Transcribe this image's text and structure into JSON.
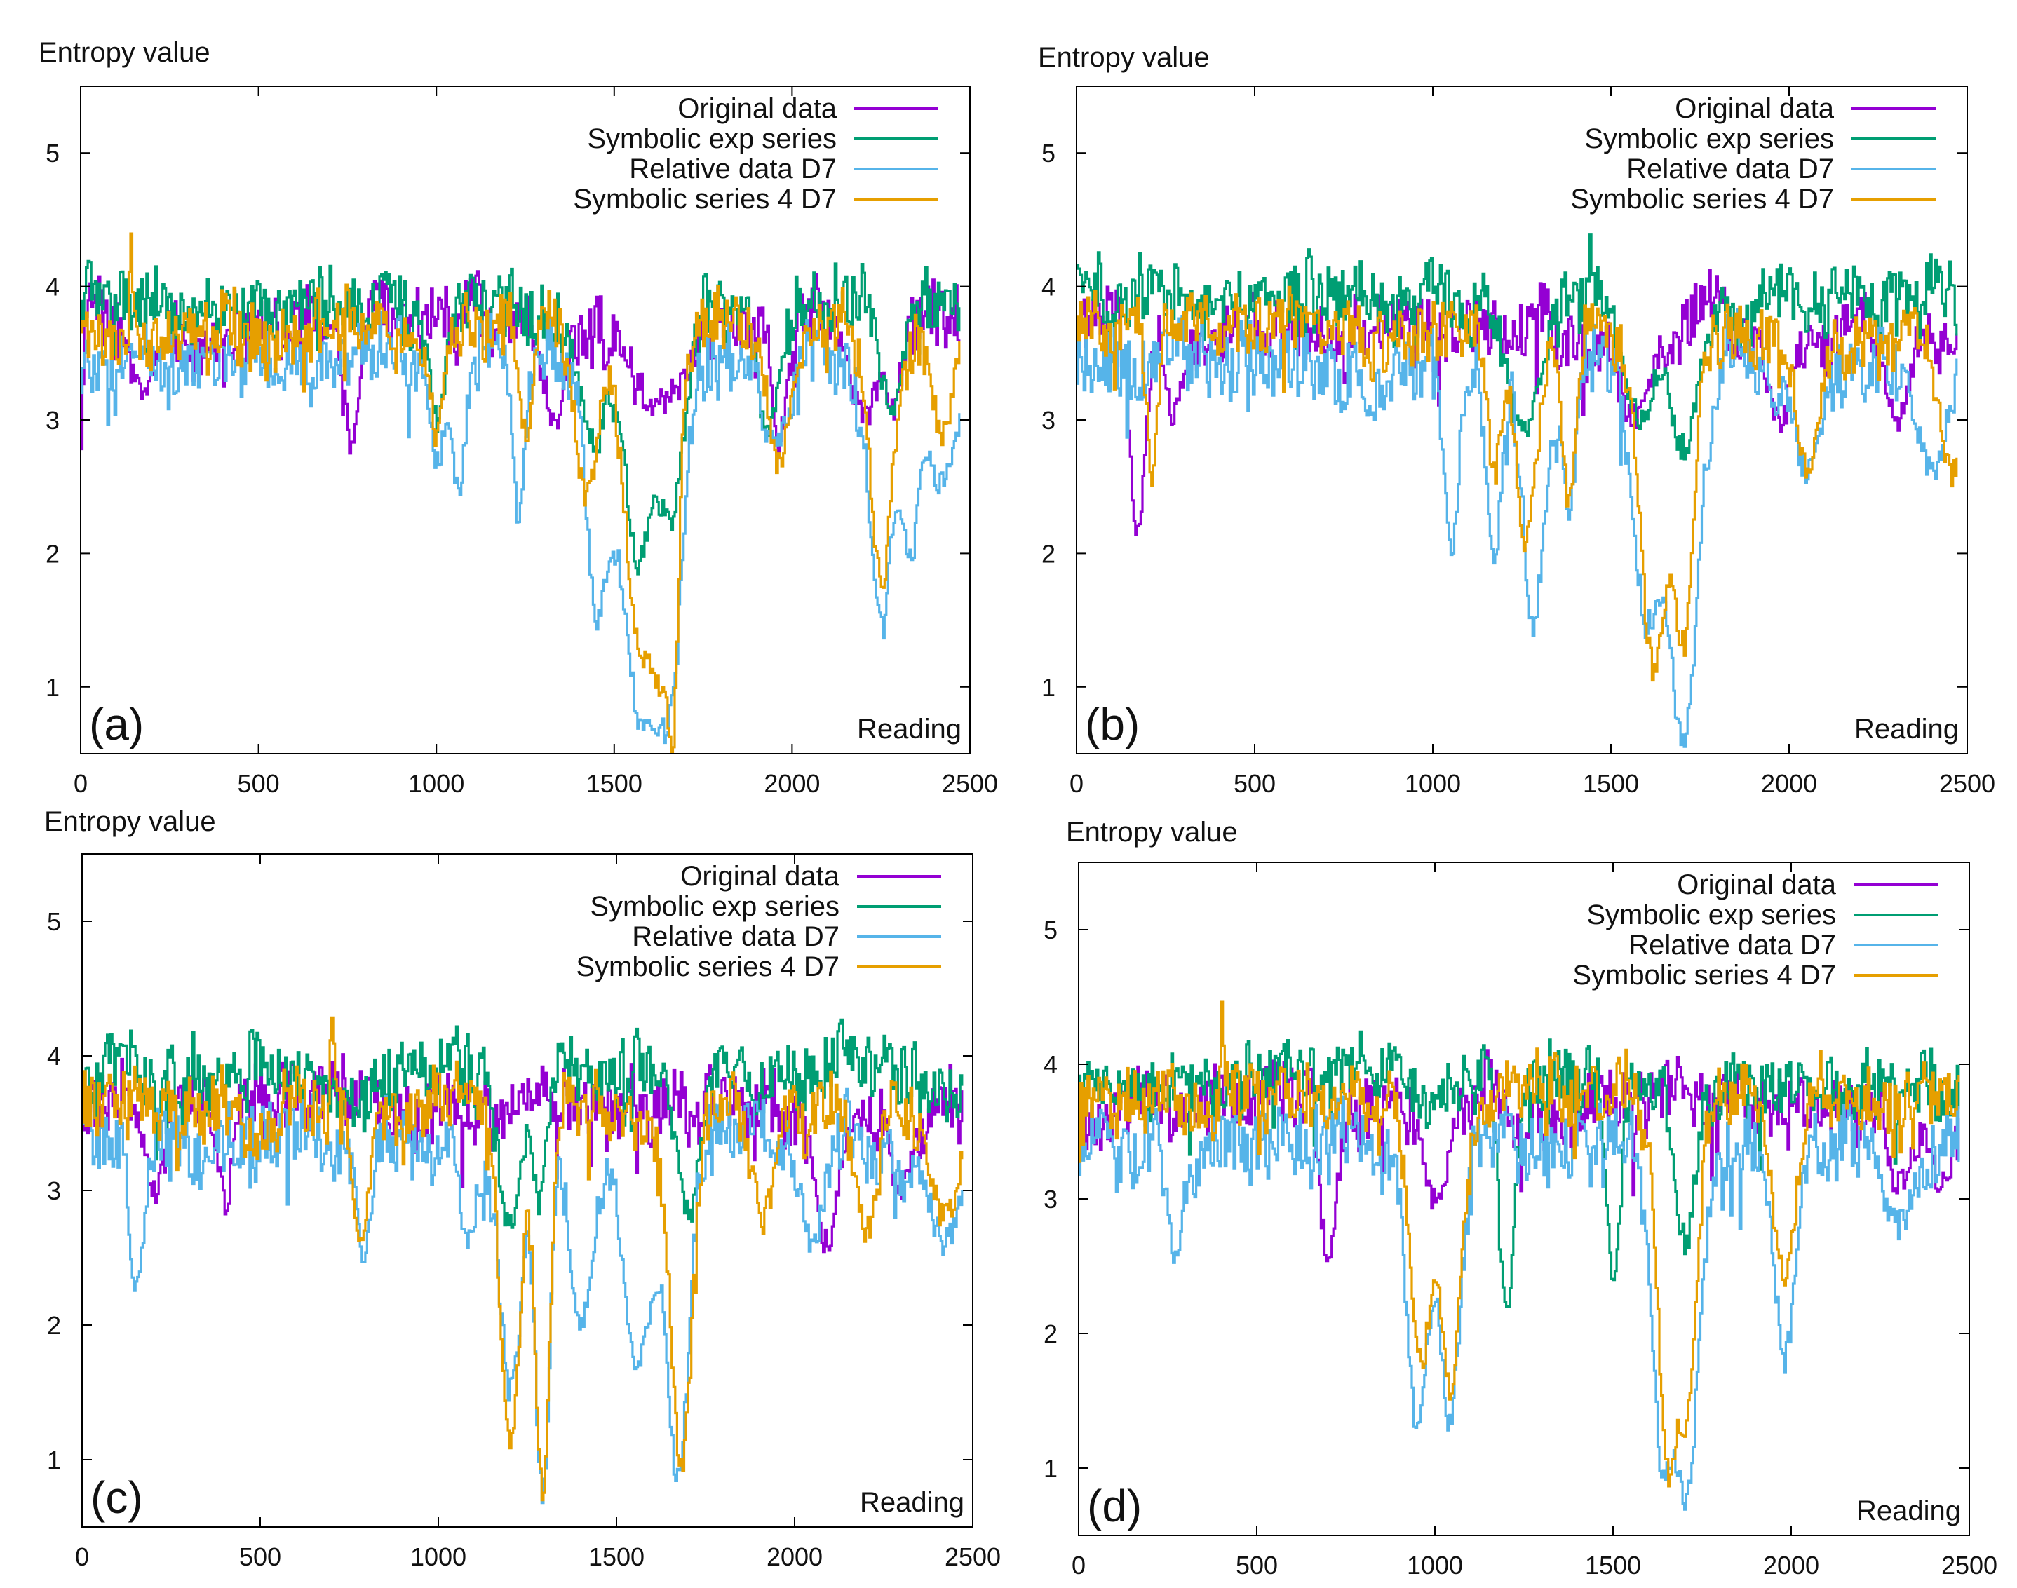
{
  "figure": {
    "background": "#ffffff"
  },
  "chart_data": [
    {
      "panel_label": "(a)",
      "type": "line",
      "ylabel": "Entropy value",
      "xlabel": "Reading",
      "xlim": [
        0,
        2500
      ],
      "ylim": [
        0.5,
        5.5
      ],
      "xticks": [
        0,
        500,
        1000,
        1500,
        2000,
        2500
      ],
      "yticks": [
        1,
        2,
        3,
        4,
        5
      ],
      "legend_position": "top-right",
      "grid": false,
      "series": [
        {
          "name": "Original data",
          "color": "#9400d3",
          "base": 3.7,
          "noise": 0.32,
          "seed": 11,
          "dips": [
            [
              0,
              2.9,
              5
            ],
            [
              170,
              3.2,
              30
            ],
            [
              760,
              2.8,
              20
            ],
            [
              1330,
              3.0,
              30
            ],
            [
              1620,
              3.1,
              60
            ],
            [
              1960,
              2.8,
              20
            ],
            [
              2200,
              3.0,
              30
            ],
            [
              2280,
              3.1,
              20
            ]
          ]
        },
        {
          "name": "Symbolic exp series",
          "color": "#009e73",
          "base": 3.88,
          "noise": 0.3,
          "seed": 12,
          "dips": [
            [
              1000,
              3.0,
              20
            ],
            [
              1440,
              2.8,
              40
            ],
            [
              1570,
              1.9,
              40
            ],
            [
              1650,
              2.2,
              40
            ],
            [
              1930,
              2.9,
              30
            ],
            [
              2280,
              3.1,
              30
            ]
          ]
        },
        {
          "name": "Relative data D7",
          "color": "#56b4e9",
          "base": 3.45,
          "noise": 0.35,
          "seed": 13,
          "dips": [
            [
              1000,
              2.7,
              20
            ],
            [
              1060,
              2.5,
              20
            ],
            [
              1230,
              2.2,
              15
            ],
            [
              1450,
              1.6,
              30
            ],
            [
              1580,
              0.72,
              60
            ],
            [
              1640,
              0.65,
              40
            ],
            [
              1950,
              2.8,
              30
            ],
            [
              2250,
              1.4,
              30
            ],
            [
              2330,
              1.9,
              30
            ],
            [
              2420,
              2.5,
              40
            ]
          ]
        },
        {
          "name": "Symbolic series 4 D7",
          "color": "#e69f00",
          "base": 3.68,
          "noise": 0.3,
          "seed": 14,
          "dips": [
            [
              140,
              4.4,
              5
            ],
            [
              1000,
              2.9,
              20
            ],
            [
              1250,
              2.9,
              20
            ],
            [
              1420,
              2.4,
              30
            ],
            [
              1570,
              1.5,
              40
            ],
            [
              1620,
              1.0,
              40
            ],
            [
              1660,
              0.5,
              15
            ],
            [
              1960,
              2.7,
              30
            ],
            [
              2250,
              1.8,
              30
            ],
            [
              2420,
              2.9,
              30
            ]
          ]
        }
      ]
    },
    {
      "panel_label": "(b)",
      "type": "line",
      "ylabel": "Entropy value",
      "xlabel": "Reading",
      "xlim": [
        0,
        2500
      ],
      "ylim": [
        0.5,
        5.5
      ],
      "xticks": [
        0,
        500,
        1000,
        1500,
        2000,
        2500
      ],
      "yticks": [
        1,
        2,
        3,
        4,
        5
      ],
      "legend_position": "top-right",
      "grid": false,
      "series": [
        {
          "name": "Original data",
          "color": "#9400d3",
          "base": 3.7,
          "noise": 0.3,
          "seed": 21,
          "dips": [
            [
              170,
              2.1,
              20
            ],
            [
              270,
              3.0,
              20
            ],
            [
              1560,
              3.0,
              40
            ],
            [
              1970,
              3.0,
              30
            ],
            [
              2300,
              3.0,
              30
            ]
          ]
        },
        {
          "name": "Symbolic exp series",
          "color": "#009e73",
          "base": 3.9,
          "noise": 0.3,
          "seed": 22,
          "dips": [
            [
              650,
              4.4,
              5
            ],
            [
              1440,
              4.3,
              5
            ],
            [
              1250,
              2.9,
              40
            ],
            [
              1580,
              3.0,
              40
            ],
            [
              1700,
              2.8,
              40
            ]
          ]
        },
        {
          "name": "Relative data D7",
          "color": "#56b4e9",
          "base": 3.4,
          "noise": 0.35,
          "seed": 23,
          "dips": [
            [
              1050,
              2.0,
              20
            ],
            [
              1170,
              1.9,
              20
            ],
            [
              1280,
              1.5,
              30
            ],
            [
              1380,
              2.3,
              20
            ],
            [
              1600,
              1.5,
              40
            ],
            [
              1700,
              0.55,
              40
            ],
            [
              2050,
              2.6,
              30
            ],
            [
              2400,
              2.6,
              40
            ]
          ]
        },
        {
          "name": "Symbolic series 4 D7",
          "color": "#e69f00",
          "base": 3.7,
          "noise": 0.3,
          "seed": 24,
          "dips": [
            [
              210,
              2.6,
              15
            ],
            [
              1170,
              2.6,
              20
            ],
            [
              1260,
              2.1,
              30
            ],
            [
              1380,
              2.4,
              20
            ],
            [
              1620,
              1.1,
              40
            ],
            [
              1700,
              1.3,
              30
            ],
            [
              2050,
              2.6,
              30
            ],
            [
              2460,
              2.6,
              40
            ]
          ]
        }
      ]
    },
    {
      "panel_label": "(c)",
      "type": "line",
      "ylabel": "Entropy value",
      "xlabel": "Reading",
      "xlim": [
        0,
        2500
      ],
      "ylim": [
        0.5,
        5.5
      ],
      "xticks": [
        0,
        500,
        1000,
        1500,
        2000,
        2500
      ],
      "yticks": [
        1,
        2,
        3,
        4,
        5
      ],
      "legend_position": "top-right",
      "grid": false,
      "series": [
        {
          "name": "Original data",
          "color": "#9400d3",
          "base": 3.65,
          "noise": 0.32,
          "seed": 31,
          "dips": [
            [
              200,
              3.0,
              30
            ],
            [
              400,
              2.9,
              20
            ],
            [
              2090,
              2.6,
              30
            ],
            [
              2300,
              3.0,
              30
            ]
          ]
        },
        {
          "name": "Symbolic exp series",
          "color": "#009e73",
          "base": 3.85,
          "noise": 0.3,
          "seed": 32,
          "dips": [
            [
              1200,
              2.7,
              30
            ],
            [
              1280,
              2.9,
              20
            ],
            [
              1700,
              2.8,
              30
            ]
          ]
        },
        {
          "name": "Relative data D7",
          "color": "#56b4e9",
          "base": 3.35,
          "noise": 0.35,
          "seed": 33,
          "dips": [
            [
              150,
              2.3,
              20
            ],
            [
              790,
              2.5,
              20
            ],
            [
              1080,
              2.6,
              20
            ],
            [
              1200,
              1.5,
              30
            ],
            [
              1290,
              0.7,
              20
            ],
            [
              1400,
              2.0,
              30
            ],
            [
              1560,
              1.7,
              40
            ],
            [
              1670,
              0.85,
              30
            ],
            [
              2050,
              2.6,
              30
            ],
            [
              2420,
              2.6,
              40
            ]
          ]
        },
        {
          "name": "Symbolic series 4 D7",
          "color": "#e69f00",
          "base": 3.6,
          "noise": 0.3,
          "seed": 34,
          "dips": [
            [
              700,
              4.4,
              5
            ],
            [
              780,
              2.6,
              20
            ],
            [
              1200,
              1.2,
              30
            ],
            [
              1290,
              0.75,
              20
            ],
            [
              1680,
              1.0,
              30
            ],
            [
              1910,
              2.8,
              30
            ],
            [
              2200,
              2.7,
              30
            ],
            [
              2420,
              2.8,
              40
            ]
          ]
        }
      ]
    },
    {
      "panel_label": "(d)",
      "type": "line",
      "ylabel": "Entropy value",
      "xlabel": "Reading",
      "xlim": [
        0,
        2500
      ],
      "ylim": [
        0.5,
        5.5
      ],
      "xticks": [
        0,
        500,
        1000,
        1500,
        2000,
        2500
      ],
      "yticks": [
        1,
        2,
        3,
        4,
        5
      ],
      "legend_position": "top-right",
      "grid": false,
      "series": [
        {
          "name": "Original data",
          "color": "#9400d3",
          "base": 3.7,
          "noise": 0.3,
          "seed": 41,
          "dips": [
            [
              700,
              2.5,
              20
            ],
            [
              1000,
              3.0,
              30
            ],
            [
              2300,
              3.1,
              30
            ],
            [
              2420,
              3.1,
              30
            ]
          ]
        },
        {
          "name": "Symbolic exp series",
          "color": "#009e73",
          "base": 3.88,
          "noise": 0.3,
          "seed": 42,
          "dips": [
            [
              1200,
              2.1,
              20
            ],
            [
              1500,
              2.4,
              20
            ],
            [
              1700,
              2.7,
              30
            ]
          ]
        },
        {
          "name": "Relative data D7",
          "color": "#56b4e9",
          "base": 3.4,
          "noise": 0.35,
          "seed": 43,
          "dips": [
            [
              270,
              2.6,
              20
            ],
            [
              950,
              1.3,
              30
            ],
            [
              1040,
              1.35,
              30
            ],
            [
              1640,
              1.0,
              30
            ],
            [
              1700,
              0.75,
              40
            ],
            [
              1980,
              1.8,
              30
            ],
            [
              2300,
              2.8,
              40
            ]
          ]
        },
        {
          "name": "Symbolic series 4 D7",
          "color": "#e69f00",
          "base": 3.72,
          "noise": 0.3,
          "seed": 44,
          "dips": [
            [
              400,
              4.35,
              5
            ],
            [
              960,
              1.8,
              30
            ],
            [
              1040,
              1.6,
              30
            ],
            [
              1660,
              0.75,
              30
            ],
            [
              1700,
              1.3,
              30
            ],
            [
              1980,
              2.4,
              30
            ]
          ]
        }
      ]
    }
  ]
}
